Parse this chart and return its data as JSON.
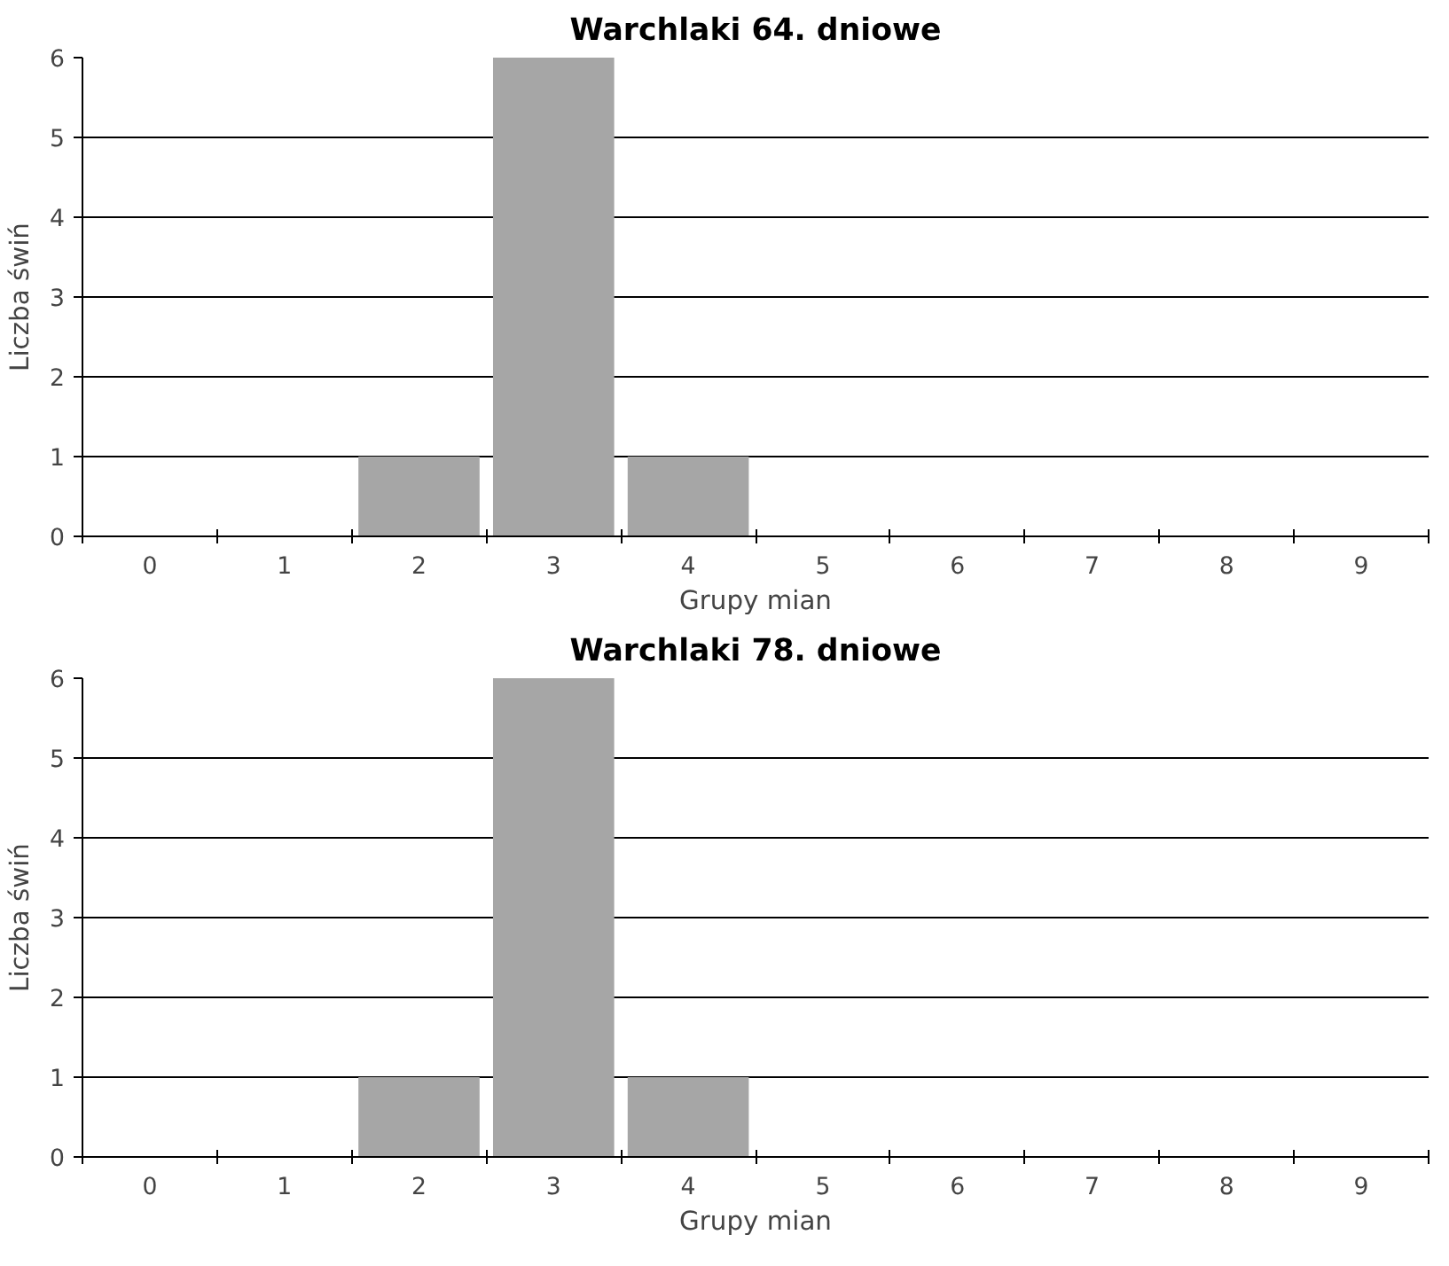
{
  "chart_data": [
    {
      "type": "bar",
      "title": "Warchlaki 64. dniowe",
      "xlabel": "Grupy mian",
      "ylabel": "Liczba świń",
      "categories": [
        "0",
        "1",
        "2",
        "3",
        "4",
        "5",
        "6",
        "7",
        "8",
        "9"
      ],
      "values": [
        0,
        0,
        1,
        6,
        1,
        0,
        0,
        0,
        0,
        0
      ],
      "color": "#a6a6a6",
      "ylim": [
        0,
        6
      ],
      "yticks": [
        0,
        1,
        2,
        3,
        4,
        5,
        6
      ],
      "grid": "y"
    },
    {
      "type": "bar",
      "title": "Warchlaki 78. dniowe",
      "xlabel": "Grupy mian",
      "ylabel": "Liczba świń",
      "categories": [
        "0",
        "1",
        "2",
        "3",
        "4",
        "5",
        "6",
        "7",
        "8",
        "9"
      ],
      "values": [
        0,
        0,
        1,
        6,
        1,
        0,
        0,
        0,
        0,
        0
      ],
      "color": "#a6a6a6",
      "ylim": [
        0,
        6
      ],
      "yticks": [
        0,
        1,
        2,
        3,
        4,
        5,
        6
      ],
      "grid": "y"
    }
  ]
}
